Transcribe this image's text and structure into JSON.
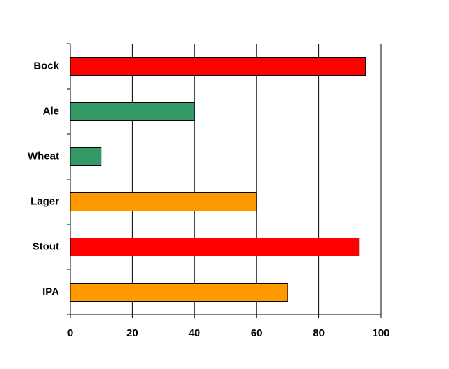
{
  "chart_data": {
    "type": "barh",
    "categories": [
      "Bock",
      "Ale",
      "Wheat",
      "Lager",
      "Stout",
      "IPA"
    ],
    "values": [
      95,
      40,
      10,
      60,
      93,
      70
    ],
    "colors": [
      "#ff0000",
      "#339966",
      "#339966",
      "#ff9900",
      "#ff0000",
      "#ff9900"
    ],
    "xlim": [
      0,
      100
    ],
    "xticks": [
      0,
      20,
      40,
      60,
      80,
      100
    ],
    "grid": true
  }
}
